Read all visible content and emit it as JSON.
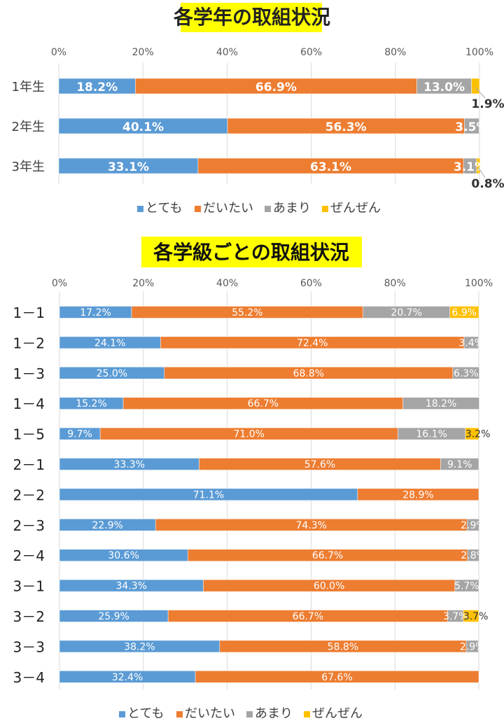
{
  "colors": {
    "totemo": "#5b9bd5",
    "daitai": "#ed7d31",
    "amari": "#a5a5a5",
    "zenzen": "#ffc000",
    "highlight": "#ffff00"
  },
  "legend": [
    "とても",
    "だいたい",
    "あまり",
    "ぜんぜん"
  ],
  "chart_data": [
    {
      "type": "bar",
      "orientation": "horizontal",
      "stacked": "percent",
      "title": "各学年の取組状況",
      "xlim": [
        0,
        100
      ],
      "x_ticks": [
        "0%",
        "20%",
        "40%",
        "60%",
        "80%",
        "100%"
      ],
      "grid": true,
      "legend_position": "bottom",
      "categories": [
        "1年生",
        "2年生",
        "3年生"
      ],
      "series": [
        {
          "name": "とても",
          "values": [
            18.2,
            40.1,
            33.1
          ]
        },
        {
          "name": "だいたい",
          "values": [
            66.9,
            56.3,
            63.1
          ]
        },
        {
          "name": "あまり",
          "values": [
            13.0,
            3.5,
            3.1
          ]
        },
        {
          "name": "ぜんぜん",
          "values": [
            1.9,
            0.0,
            0.8
          ]
        }
      ],
      "data_labels": [
        [
          "18.2%",
          "66.9%",
          "13.0%",
          "1.9%"
        ],
        [
          "40.1%",
          "56.3%",
          "3.5%",
          ""
        ],
        [
          "33.1%",
          "63.1%",
          "3.1%",
          "0.8%"
        ]
      ]
    },
    {
      "type": "bar",
      "orientation": "horizontal",
      "stacked": "percent",
      "title": "各学級ごとの取組状況",
      "xlim": [
        0,
        100
      ],
      "x_ticks": [
        "0%",
        "20%",
        "40%",
        "60%",
        "80%",
        "100%"
      ],
      "grid": true,
      "legend_position": "bottom",
      "categories": [
        "1－1",
        "1－2",
        "1－3",
        "1－4",
        "1－5",
        "2－1",
        "2－2",
        "2－3",
        "2－4",
        "3－1",
        "3－2",
        "3－3",
        "3－4"
      ],
      "series": [
        {
          "name": "とても",
          "values": [
            17.2,
            24.1,
            25.0,
            15.2,
            9.7,
            33.3,
            71.1,
            22.9,
            30.6,
            34.3,
            25.9,
            38.2,
            32.4
          ]
        },
        {
          "name": "だいたい",
          "values": [
            55.2,
            72.4,
            68.8,
            66.7,
            71.0,
            57.6,
            28.9,
            74.3,
            66.7,
            60.0,
            66.7,
            58.8,
            67.6
          ]
        },
        {
          "name": "あまり",
          "values": [
            20.7,
            3.4,
            6.3,
            18.2,
            16.1,
            9.1,
            0.0,
            2.9,
            2.8,
            5.7,
            3.7,
            2.9,
            0.0
          ]
        },
        {
          "name": "ぜんぜん",
          "values": [
            6.9,
            0.0,
            0.0,
            0.0,
            3.2,
            0.0,
            0.0,
            0.0,
            0.0,
            0.0,
            3.7,
            0.0,
            0.0
          ]
        }
      ],
      "data_labels": [
        [
          "17.2%",
          "55.2%",
          "20.7%",
          "6.9%"
        ],
        [
          "24.1%",
          "72.4%",
          "3.4%",
          ""
        ],
        [
          "25.0%",
          "68.8%",
          "6.3%",
          ""
        ],
        [
          "15.2%",
          "66.7%",
          "18.2%",
          ""
        ],
        [
          "9.7%",
          "71.0%",
          "16.1%",
          "3.2%"
        ],
        [
          "33.3%",
          "57.6%",
          "9.1%",
          ""
        ],
        [
          "71.1%",
          "28.9%",
          "",
          ""
        ],
        [
          "22.9%",
          "74.3%",
          "2.9%",
          ""
        ],
        [
          "30.6%",
          "66.7%",
          "2.8%",
          ""
        ],
        [
          "34.3%",
          "60.0%",
          "5.7%",
          ""
        ],
        [
          "25.9%",
          "66.7%",
          "3.7%",
          "3.7%"
        ],
        [
          "38.2%",
          "58.8%",
          "2.9%",
          ""
        ],
        [
          "32.4%",
          "67.6%",
          "",
          ""
        ]
      ]
    }
  ]
}
